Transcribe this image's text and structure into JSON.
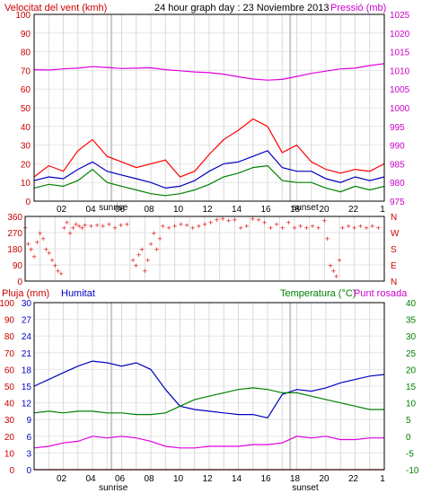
{
  "chart_data": [
    {
      "type": "line",
      "title": "24 hour graph day : 23 Noviembre 2013",
      "ylabel_left": "Velocitat del vent (kmh)",
      "ylabel_right": "Pressió (mb)",
      "xticks": [
        "02",
        "04",
        "06",
        "08",
        "10",
        "12",
        "14",
        "16",
        "18",
        "20",
        "22",
        "1"
      ],
      "sunrise_label": "sunrise",
      "sunset_label": "sunset",
      "ylim_left": [
        0,
        100
      ],
      "yticks_left": [
        "0",
        "10",
        "20",
        "30",
        "40",
        "50",
        "60",
        "70",
        "80",
        "90",
        "100"
      ],
      "ylim_right": [
        975,
        1025
      ],
      "yticks_right": [
        "975",
        "980",
        "985",
        "990",
        "995",
        "1000",
        "1005",
        "1010",
        "1015",
        "1020",
        "1025"
      ],
      "grid": true,
      "colors": {
        "gust": "#ff0000",
        "avg": "#0000c0",
        "low": "#008000",
        "pressure": "#e000e0",
        "left_axis": "#cc0000",
        "right_axis": "#cc00cc",
        "sun_lines": "#c8c8c8"
      },
      "series": [
        {
          "key": "gust",
          "color": "#ff0000",
          "x": [
            0,
            1,
            2,
            3,
            4,
            5,
            6,
            7,
            8,
            9,
            10,
            11,
            12,
            13,
            14,
            15,
            16,
            17,
            18,
            19,
            20,
            21,
            22,
            23,
            24
          ],
          "values": [
            13,
            19,
            16,
            27,
            33,
            24,
            21,
            18,
            20,
            22,
            13,
            16,
            25,
            33,
            38,
            44,
            40,
            26,
            30,
            21,
            17,
            15,
            17,
            16,
            20
          ]
        },
        {
          "key": "avg",
          "color": "#0000c0",
          "x": [
            0,
            1,
            2,
            3,
            4,
            5,
            6,
            7,
            8,
            9,
            10,
            11,
            12,
            13,
            14,
            15,
            16,
            17,
            18,
            19,
            20,
            21,
            22,
            23,
            24
          ],
          "values": [
            11,
            13,
            12,
            17,
            21,
            16,
            14,
            12,
            10,
            7,
            8,
            11,
            16,
            20,
            21,
            24,
            27,
            18,
            16,
            16,
            12,
            10,
            13,
            11,
            13
          ]
        },
        {
          "key": "low",
          "color": "#008000",
          "x": [
            0,
            1,
            2,
            3,
            4,
            5,
            6,
            7,
            8,
            9,
            10,
            11,
            12,
            13,
            14,
            15,
            16,
            17,
            18,
            19,
            20,
            21,
            22,
            23,
            24
          ],
          "values": [
            7,
            9,
            8,
            11,
            17,
            10,
            8,
            6,
            4,
            3,
            4,
            6,
            9,
            13,
            15,
            18,
            19,
            11,
            10,
            10,
            7,
            5,
            8,
            6,
            8
          ]
        },
        {
          "key": "pressure",
          "axis": "right",
          "color": "#e000e0",
          "x": [
            0,
            1,
            2,
            3,
            4,
            5,
            6,
            7,
            8,
            9,
            10,
            11,
            12,
            13,
            14,
            15,
            16,
            17,
            18,
            19,
            20,
            21,
            22,
            23,
            24
          ],
          "values": [
            1010.2,
            1010.1,
            1010.4,
            1010.6,
            1011.0,
            1010.8,
            1010.5,
            1010.6,
            1010.7,
            1010.2,
            1009.9,
            1009.6,
            1009.4,
            1009.0,
            1008.3,
            1007.7,
            1007.4,
            1007.6,
            1008.4,
            1009.2,
            1009.8,
            1010.4,
            1010.6,
            1011.3,
            1011.8
          ]
        }
      ]
    },
    {
      "type": "scatter",
      "ylabel": "Wind direction",
      "ylim": [
        0,
        360
      ],
      "yticks": [
        "0",
        "90",
        "180",
        "270",
        "360"
      ],
      "compass": [
        "N",
        "E",
        "S",
        "W",
        "N"
      ],
      "color": "#dd0000",
      "points": [
        [
          0.0,
          300
        ],
        [
          0.2,
          210
        ],
        [
          0.4,
          180
        ],
        [
          0.6,
          140
        ],
        [
          0.8,
          220
        ],
        [
          1.0,
          270
        ],
        [
          1.2,
          240
        ],
        [
          1.4,
          180
        ],
        [
          1.6,
          160
        ],
        [
          1.8,
          120
        ],
        [
          2.0,
          90
        ],
        [
          2.2,
          60
        ],
        [
          2.4,
          45
        ],
        [
          2.6,
          300
        ],
        [
          2.8,
          330
        ],
        [
          3.0,
          270
        ],
        [
          3.2,
          300
        ],
        [
          3.4,
          320
        ],
        [
          3.6,
          310
        ],
        [
          3.8,
          300
        ],
        [
          4.0,
          315
        ],
        [
          4.4,
          310
        ],
        [
          4.8,
          315
        ],
        [
          5.2,
          310
        ],
        [
          5.6,
          320
        ],
        [
          6.0,
          300
        ],
        [
          6.4,
          315
        ],
        [
          6.8,
          320
        ],
        [
          7.2,
          120
        ],
        [
          7.4,
          90
        ],
        [
          7.6,
          150
        ],
        [
          7.8,
          180
        ],
        [
          8.0,
          60
        ],
        [
          8.2,
          120
        ],
        [
          8.4,
          210
        ],
        [
          8.6,
          270
        ],
        [
          8.8,
          180
        ],
        [
          9.0,
          240
        ],
        [
          9.2,
          310
        ],
        [
          9.6,
          300
        ],
        [
          10.0,
          310
        ],
        [
          10.4,
          320
        ],
        [
          10.8,
          315
        ],
        [
          11.2,
          300
        ],
        [
          11.6,
          310
        ],
        [
          12.0,
          320
        ],
        [
          12.4,
          330
        ],
        [
          12.8,
          345
        ],
        [
          13.2,
          350
        ],
        [
          13.6,
          340
        ],
        [
          14.0,
          345
        ],
        [
          14.4,
          300
        ],
        [
          14.8,
          310
        ],
        [
          15.2,
          350
        ],
        [
          15.6,
          345
        ],
        [
          16.0,
          330
        ],
        [
          16.4,
          300
        ],
        [
          16.8,
          320
        ],
        [
          17.2,
          300
        ],
        [
          17.6,
          330
        ],
        [
          18.0,
          300
        ],
        [
          18.4,
          310
        ],
        [
          18.8,
          300
        ],
        [
          19.2,
          310
        ],
        [
          19.6,
          300
        ],
        [
          20.0,
          340
        ],
        [
          20.2,
          240
        ],
        [
          20.4,
          90
        ],
        [
          20.6,
          60
        ],
        [
          20.8,
          30
        ],
        [
          21.0,
          120
        ],
        [
          21.2,
          300
        ],
        [
          21.6,
          310
        ],
        [
          22.0,
          300
        ],
        [
          22.4,
          310
        ],
        [
          22.8,
          300
        ],
        [
          23.2,
          310
        ],
        [
          23.6,
          300
        ]
      ]
    },
    {
      "type": "line",
      "ylabel_left_1": "Pluja (mm)",
      "ylabel_left_2": "Humitat",
      "ylabel_right_1": "Temperatura (°C)",
      "ylabel_right_2": "Punt rosada",
      "ylim_left_outer": [
        0,
        100
      ],
      "yticks_left_outer": [
        "0",
        "10",
        "20",
        "30",
        "40",
        "50",
        "60",
        "70",
        "80",
        "90",
        "100"
      ],
      "ylim_left_inner": [
        0,
        30
      ],
      "yticks_left_inner": [
        "0",
        "3",
        "6",
        "9",
        "12",
        "15",
        "18",
        "21",
        "24",
        "27",
        "30"
      ],
      "ylim_right": [
        -10,
        40
      ],
      "yticks_right": [
        "-10",
        "-5",
        "0",
        "5",
        "10",
        "15",
        "20",
        "25",
        "30",
        "35",
        "40"
      ],
      "xticks": [
        "02",
        "04",
        "06",
        "08",
        "10",
        "12",
        "14",
        "16",
        "18",
        "20",
        "22",
        "1"
      ],
      "sunrise_label": "sunrise",
      "sunset_label": "sunset",
      "colors": {
        "humidity": "#0000c0",
        "temperature": "#008000",
        "dewpoint": "#e000e0",
        "rain": "#dd0000",
        "left_axis": "#cc0000",
        "inner_axis": "#0000c0",
        "right_axis": "#008000",
        "sun_lines": "#c8c8c8"
      },
      "series": [
        {
          "key": "humidity",
          "axis": "left_outer",
          "color": "#0000c0",
          "x": [
            0,
            1,
            2,
            3,
            4,
            5,
            6,
            7,
            8,
            9,
            10,
            11,
            12,
            13,
            14,
            15,
            16,
            17,
            18,
            19,
            20,
            21,
            22,
            23,
            24
          ],
          "values": [
            50,
            54,
            58,
            62,
            65,
            64,
            62,
            64,
            60,
            48,
            38,
            36,
            35,
            34,
            33,
            33,
            31,
            45,
            48,
            47,
            49,
            52,
            54,
            56,
            57
          ]
        },
        {
          "key": "temperature",
          "axis": "right",
          "color": "#008000",
          "x": [
            0,
            1,
            2,
            3,
            4,
            5,
            6,
            7,
            8,
            9,
            10,
            11,
            12,
            13,
            14,
            15,
            16,
            17,
            18,
            19,
            20,
            21,
            22,
            23,
            24
          ],
          "values": [
            7,
            7.5,
            7,
            7.5,
            7.5,
            7,
            7,
            6.5,
            6.5,
            7,
            9,
            11,
            12,
            13,
            14,
            14.5,
            14,
            13,
            13,
            12,
            11,
            10,
            9,
            8,
            8
          ]
        },
        {
          "key": "dewpoint",
          "axis": "right",
          "color": "#e000e0",
          "x": [
            0,
            1,
            2,
            3,
            4,
            5,
            6,
            7,
            8,
            9,
            10,
            11,
            12,
            13,
            14,
            15,
            16,
            17,
            18,
            19,
            20,
            21,
            22,
            23,
            24
          ],
          "values": [
            -3.5,
            -3,
            -2,
            -1.5,
            0,
            -0.5,
            0,
            -0.5,
            -1.5,
            -3,
            -3.5,
            -3.5,
            -3,
            -3,
            -3,
            -2.5,
            -2.5,
            -2,
            0,
            -0.5,
            0,
            -1,
            -1,
            -0.5,
            -0.5
          ]
        },
        {
          "key": "rain",
          "axis": "left_outer",
          "color": "#dd0000",
          "x": [
            0,
            24
          ],
          "values": [
            0,
            0
          ]
        }
      ]
    }
  ]
}
